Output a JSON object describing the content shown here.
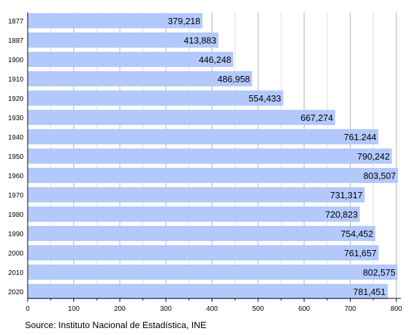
{
  "chart_data": {
    "type": "bar",
    "orientation": "horizontal",
    "categories": [
      "1877",
      "1887",
      "1900",
      "1910",
      "1920",
      "1930",
      "1940",
      "1950",
      "1960",
      "1970",
      "1980",
      "1990",
      "2000",
      "2010",
      "2020"
    ],
    "values": [
      379.218,
      413.883,
      446.248,
      486.958,
      554.433,
      667.274,
      761.244,
      790.242,
      803.507,
      731.317,
      720.823,
      754.452,
      761.657,
      802.575,
      781.451
    ],
    "data_labels": [
      "379,218",
      "413,883",
      "446,248",
      "486,958",
      "554,433",
      "667,274",
      "761.244",
      "790,242",
      "803,507",
      "731,317",
      "720,823",
      "754,452",
      "761,657",
      "802,575",
      "781,451"
    ],
    "xlim": [
      0,
      810
    ],
    "xticks": [
      "0",
      "100",
      "200",
      "300",
      "400",
      "500",
      "600",
      "700",
      "800"
    ],
    "grid": true,
    "bar_color": "#b3c9fb",
    "source": "Source: Instituto Nacional de Estadística, INE"
  }
}
